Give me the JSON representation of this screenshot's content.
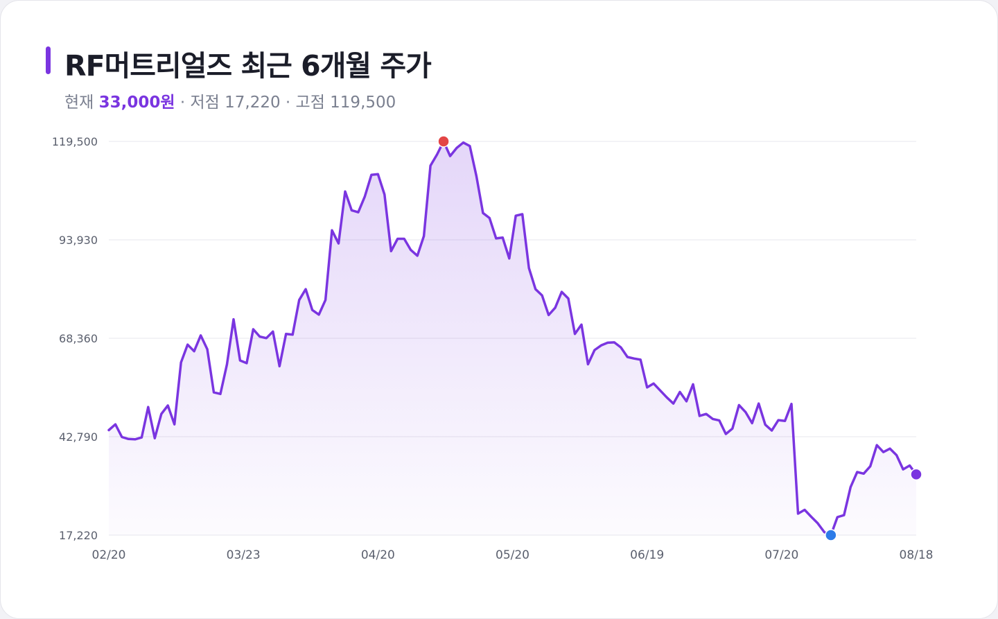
{
  "title": "RF머트리얼즈 최근 6개월 주가",
  "subtitle": {
    "current_prefix": "현재 ",
    "current_value": "33,000원",
    "rest": " · 저점 17,220 · 고점 119,500"
  },
  "colors": {
    "accent": "#7a35e0",
    "line": "#7a35e0",
    "high_marker": "#e34545",
    "low_marker": "#2d7be8",
    "current_marker": "#7a35e0",
    "grid": "#e7e7ec"
  },
  "chart_data": {
    "type": "area",
    "ylim": [
      17220,
      119500
    ],
    "y_ticks": [
      17220,
      42790,
      68360,
      93930,
      119500
    ],
    "y_tick_labels": [
      "17,220",
      "42,790",
      "68,360",
      "93,930",
      "119,500"
    ],
    "x_tick_labels": [
      "02/20",
      "03/23",
      "04/20",
      "05/20",
      "06/19",
      "07/20",
      "08/18"
    ],
    "grid": true,
    "markers": {
      "high": 119500,
      "low": 17220,
      "current": 33000
    },
    "values": [
      44500,
      46000,
      42700,
      42200,
      42100,
      42600,
      50500,
      42400,
      48700,
      50900,
      46000,
      62100,
      66700,
      65000,
      69100,
      65500,
      54300,
      53900,
      61600,
      73300,
      62600,
      61900,
      70700,
      68800,
      68400,
      70100,
      61100,
      69500,
      69300,
      78300,
      81100,
      75700,
      74500,
      78300,
      96400,
      93000,
      106500,
      101600,
      101100,
      105200,
      110800,
      111000,
      105700,
      91000,
      94200,
      94200,
      91300,
      89800,
      94900,
      113200,
      116100,
      119500,
      115700,
      117800,
      119200,
      118300,
      110500,
      100900,
      99600,
      94300,
      94500,
      89100,
      100200,
      100600,
      86600,
      81100,
      79500,
      74400,
      76300,
      80400,
      78700,
      69500,
      71900,
      61600,
      65300,
      66500,
      67200,
      67300,
      66000,
      63500,
      63100,
      62800,
      55600,
      56600,
      54800,
      53000,
      51400,
      54400,
      52000,
      56400,
      48200,
      48700,
      47400,
      47000,
      43500,
      44900,
      51000,
      49200,
      46300,
      51400,
      45900,
      44400,
      47100,
      46900,
      51300,
      22800,
      23800,
      22000,
      20300,
      18000,
      17220,
      21900,
      22400,
      29700,
      33600,
      33200,
      35100,
      40600,
      38800,
      39700,
      38000,
      34300,
      35300,
      33000
    ]
  }
}
